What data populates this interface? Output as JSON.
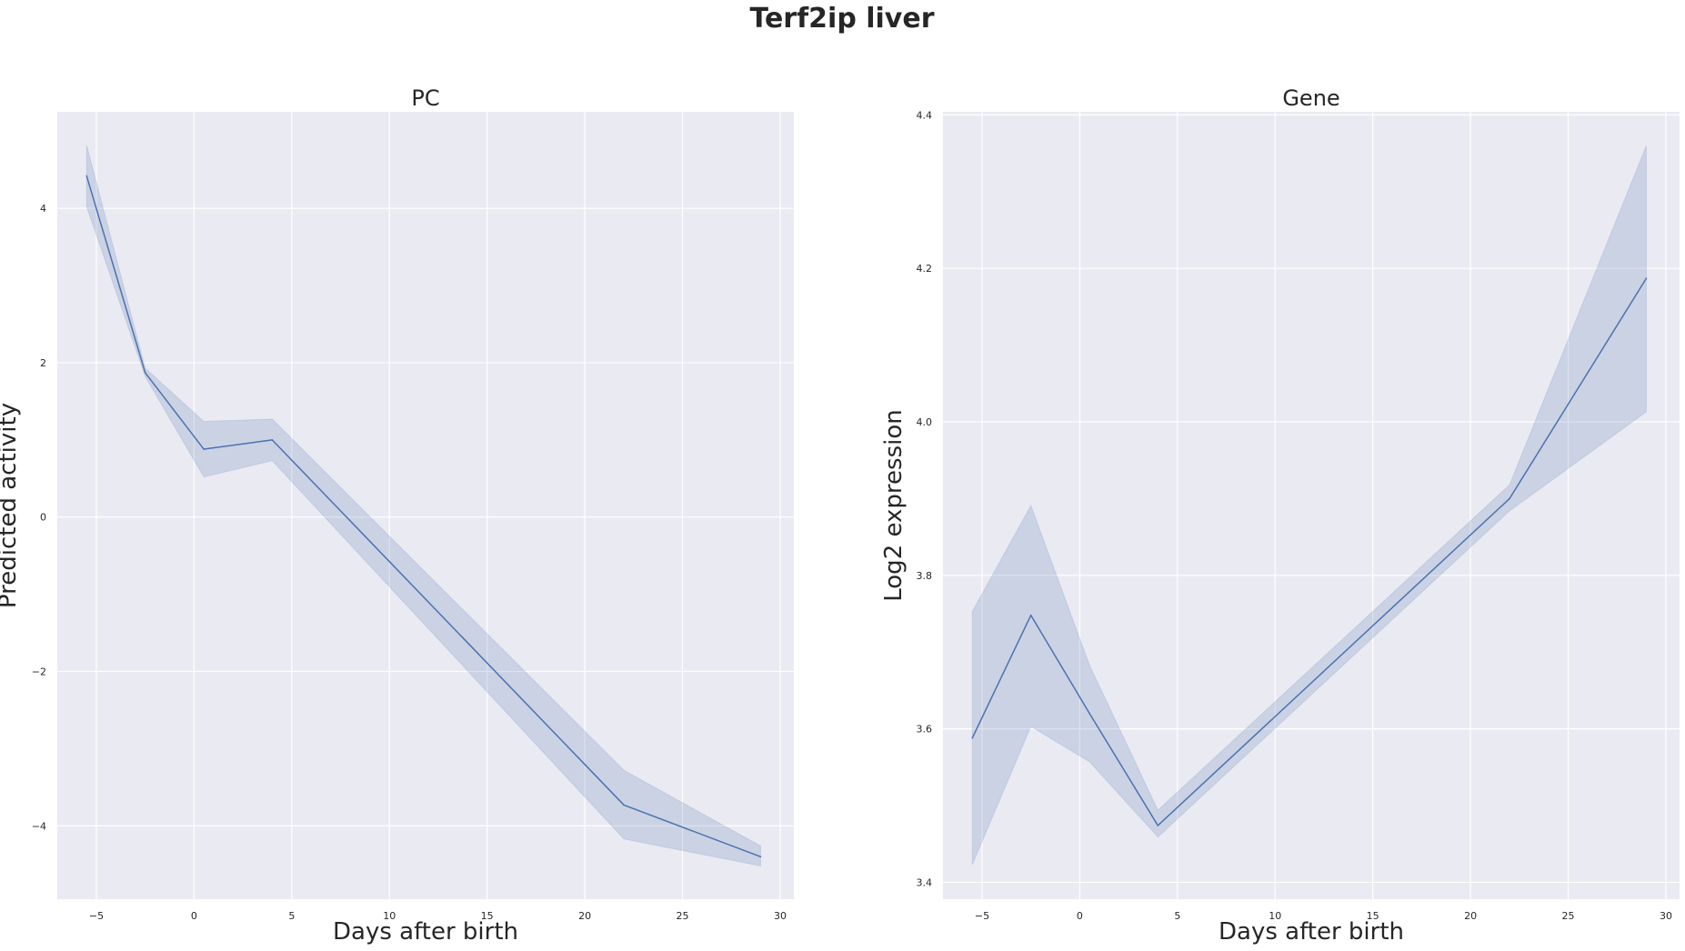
{
  "figure": {
    "suptitle": "Terf2ip liver"
  },
  "colors": {
    "plot_background": "#eaeaf2",
    "grid": "#ffffff",
    "series": "#4c72b0"
  },
  "chart_data": [
    {
      "type": "line",
      "title": "PC",
      "xlabel": "Days after birth",
      "ylabel": "Predicted activity",
      "xlim": [
        -7,
        30.7
      ],
      "ylim": [
        -4.95,
        5.25
      ],
      "xticks": [
        -5,
        0,
        5,
        10,
        15,
        20,
        25,
        30
      ],
      "xtick_labels": [
        "−5",
        "0",
        "5",
        "10",
        "15",
        "20",
        "25",
        "30"
      ],
      "yticks": [
        -4,
        -2,
        0,
        2,
        4
      ],
      "ytick_labels": [
        "−4",
        "−2",
        "0",
        "2",
        "4"
      ],
      "grid": true,
      "series": [
        {
          "x": [
            -5.5,
            -2.5,
            0.5,
            4,
            22,
            29
          ],
          "y": [
            4.42,
            1.87,
            0.88,
            1.0,
            -3.73,
            -4.4
          ],
          "ci_lower": [
            4.02,
            1.82,
            0.52,
            0.73,
            -4.17,
            -4.52
          ],
          "ci_upper": [
            4.82,
            1.93,
            1.24,
            1.27,
            -3.28,
            -4.26
          ]
        }
      ]
    },
    {
      "type": "line",
      "title": "Gene",
      "xlabel": "Days after birth",
      "ylabel": "Log2 expression",
      "xlim": [
        -7,
        30.7
      ],
      "ylim": [
        3.378,
        4.404
      ],
      "xticks": [
        -5,
        0,
        5,
        10,
        15,
        20,
        25,
        30
      ],
      "xtick_labels": [
        "−5",
        "0",
        "5",
        "10",
        "15",
        "20",
        "25",
        "30"
      ],
      "yticks": [
        3.4,
        3.6,
        3.8,
        4.0,
        4.2,
        4.4
      ],
      "ytick_labels": [
        "3.4",
        "3.6",
        "3.8",
        "4.0",
        "4.2",
        "4.4"
      ],
      "grid": true,
      "series": [
        {
          "x": [
            -5.5,
            -2.5,
            0.5,
            4,
            22,
            29
          ],
          "y": [
            3.588,
            3.748,
            3.62,
            3.474,
            3.9,
            4.187
          ],
          "ci_lower": [
            3.423,
            3.603,
            3.557,
            3.459,
            3.884,
            4.013
          ],
          "ci_upper": [
            3.753,
            3.891,
            3.683,
            3.494,
            3.918,
            4.36
          ]
        }
      ]
    }
  ]
}
